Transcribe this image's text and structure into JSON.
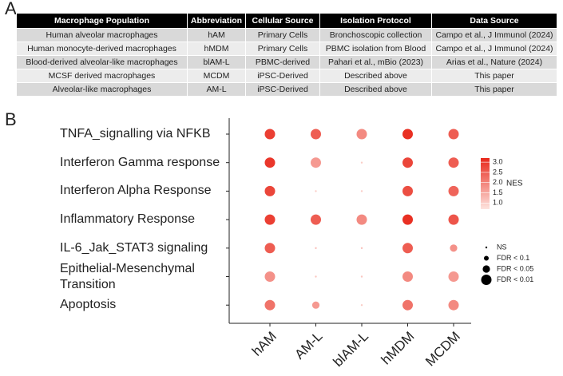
{
  "panel_a": {
    "label": "A",
    "table": {
      "header": [
        "Macrophage Population",
        "Abbreviation",
        "Cellular Source",
        "Isolation Protocol",
        "Data Source"
      ],
      "rows": [
        [
          "Human alveolar macrophages",
          "hAM",
          "Primary Cells",
          "Bronchoscopic collection",
          "Campo et al., J Immunol (2024)"
        ],
        [
          "Human monocyte-derived macrophages",
          "hMDM",
          "Primary Cells",
          "PBMC isolation from Blood",
          "Campo et al., J Immunol (2024)"
        ],
        [
          "Blood-derived alveolar-like macrophages",
          "blAM-L",
          "PBMC-derived",
          "Pahari et al., mBio (2023)",
          "Arias et al., Nature (2024)"
        ],
        [
          "MCSF derived macrophages",
          "MCDM",
          "iPSC-Derived",
          "Described above",
          "This paper"
        ],
        [
          "Alveolar-like macrophages",
          "AM-L",
          "iPSC-Derived",
          "Described above",
          "This paper"
        ]
      ]
    }
  },
  "chart_data": {
    "type": "dotplot",
    "panel_label": "B",
    "categories": [
      "hAM",
      "AM-L",
      "blAM-L",
      "hMDM",
      "MCDM"
    ],
    "rows": [
      "TNFA_signalling via NFKB",
      "Interferon Gamma response",
      "Interferon Alpha Response",
      "Inflammatory Response",
      "IL-6_Jak_STAT3 signaling",
      "Epithelial-Mesenchymal Transition",
      "Apoptosis"
    ],
    "nes": [
      [
        2.9,
        2.5,
        1.9,
        3.1,
        2.5
      ],
      [
        3.0,
        1.7,
        1.0,
        2.8,
        2.5
      ],
      [
        2.8,
        1.0,
        1.0,
        2.7,
        2.4
      ],
      [
        2.9,
        2.5,
        1.9,
        3.1,
        2.6
      ],
      [
        2.5,
        1.2,
        1.2,
        2.5,
        1.8
      ],
      [
        1.8,
        1.1,
        1.1,
        1.9,
        1.7
      ],
      [
        2.2,
        1.7,
        1.0,
        2.2,
        1.9
      ]
    ],
    "fdr_level": [
      [
        3,
        3,
        3,
        3,
        3
      ],
      [
        3,
        3,
        0,
        3,
        3
      ],
      [
        3,
        0,
        0,
        3,
        3
      ],
      [
        3,
        3,
        3,
        3,
        3
      ],
      [
        3,
        0,
        0,
        3,
        2
      ],
      [
        3,
        0,
        0,
        3,
        3
      ],
      [
        3,
        2,
        0,
        3,
        3
      ]
    ],
    "color_title": "NES",
    "clim": [
      0.7,
      3.2
    ],
    "cticks": [
      {
        "value": 1.0,
        "label": "1.0"
      },
      {
        "value": 1.5,
        "label": "1.5"
      },
      {
        "value": 2.0,
        "label": "2.0"
      },
      {
        "value": 2.5,
        "label": "2.5"
      },
      {
        "value": 3.0,
        "label": "3.0"
      }
    ],
    "colors": [
      "#fde4df",
      "#e8281b"
    ],
    "size_legend": [
      "NS",
      "FDR < 0.1",
      "FDR < 0.05",
      "FDR < 0.01"
    ]
  }
}
